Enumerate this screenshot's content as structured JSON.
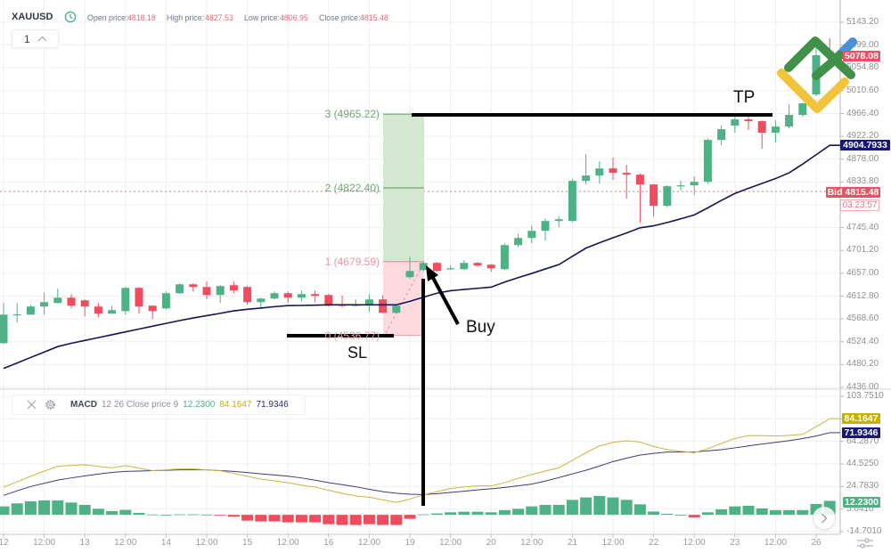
{
  "header": {
    "symbol": "XAUUSD",
    "clock_icon": "clock-icon",
    "open_label": "Open price:",
    "open_value": "4818.18",
    "high_label": "High price:",
    "high_value": "4827.53",
    "low_label": "Low price:",
    "low_value": "4806.95",
    "close_label": "Close price:",
    "close_value": "4815.48"
  },
  "multiplier": {
    "value": "1",
    "icon": "chevron-up-icon"
  },
  "macd_legend": {
    "close_icon": "close-icon",
    "settings_icon": "gear-icon",
    "name": "MACD",
    "params": "12 26 Close price 9",
    "hist_value": "12.2300",
    "macd_value": "84.1647",
    "signal_value": "71.9346"
  },
  "price_tags": {
    "last": "5078.08",
    "ma": "4904.7933",
    "bid": "Bid 4815.48",
    "countdown": "03:23:57"
  },
  "macd_tags": {
    "macd": "84.1647",
    "signal": "71.9346",
    "hist": "12.2300"
  },
  "annotations": {
    "tp_label": "TP",
    "sl_label": "SL",
    "buy_label": "Buy"
  },
  "controls": {
    "scroll_icon": "chevron-right-icon",
    "settings_icon": "sliders-icon"
  },
  "colors": {
    "up": "#4fb286",
    "down": "#ef4d5f",
    "ma": "#15154f",
    "macd": "#c9b540",
    "signal": "#3b3b7d",
    "bid_line": "#e4707f",
    "tp_zone": "#cfe6cc",
    "sl_zone": "#fcd6dc"
  },
  "chart_data": {
    "type": "candlestick",
    "title": "XAUUSD",
    "x_ticks": [
      {
        "label": "12",
        "index": 0
      },
      {
        "label": "12:00",
        "index": 3
      },
      {
        "label": "13",
        "index": 6
      },
      {
        "label": "12:00",
        "index": 9
      },
      {
        "label": "14",
        "index": 12
      },
      {
        "label": "12:00",
        "index": 15
      },
      {
        "label": "15",
        "index": 18
      },
      {
        "label": "12:00",
        "index": 21
      },
      {
        "label": "16",
        "index": 24
      },
      {
        "label": "12:00",
        "index": 27
      },
      {
        "label": "19",
        "index": 30
      },
      {
        "label": "12:00",
        "index": 33
      },
      {
        "label": "20",
        "index": 36
      },
      {
        "label": "12:00",
        "index": 39
      },
      {
        "label": "21",
        "index": 42
      },
      {
        "label": "12:00",
        "index": 45
      },
      {
        "label": "22",
        "index": 48
      },
      {
        "label": "12:00",
        "index": 51
      },
      {
        "label": "23",
        "index": 54
      },
      {
        "label": "12:00",
        "index": 57
      },
      {
        "label": "26",
        "index": 60
      }
    ],
    "price_axis": {
      "ticks": [
        "5143.20",
        "5099.00",
        "5054.80",
        "5010.60",
        "4966.40",
        "4922.20",
        "4878.00",
        "4833.80",
        "4745.40",
        "4701.20",
        "4657.00",
        "4612.80",
        "4568.60",
        "4524.40",
        "4480.20",
        "4436.00"
      ],
      "range": [
        4436.0,
        5143.2
      ],
      "grid": true
    },
    "candles_ohlc": [
      [
        4521.7,
        4599.4,
        4520.0,
        4576.9
      ],
      [
        4576.0,
        4599.4,
        4561.4,
        4577.5
      ],
      [
        4576.9,
        4595.9,
        4576.9,
        4592.5
      ],
      [
        4592.5,
        4618.4,
        4576.9,
        4601.1
      ],
      [
        4599.4,
        4627.0,
        4599.4,
        4609.7
      ],
      [
        4609.7,
        4616.7,
        4589.0,
        4594.2
      ],
      [
        4604.6,
        4606.3,
        4573.5,
        4592.5
      ],
      [
        4592.5,
        4599.4,
        4571.8,
        4578.7
      ],
      [
        4578.7,
        4594.2,
        4578.7,
        4585.6
      ],
      [
        4583.8,
        4630.5,
        4576.9,
        4628.7
      ],
      [
        4628.7,
        4630.5,
        4578.7,
        4592.5
      ],
      [
        4594.2,
        4594.2,
        4568.3,
        4583.8
      ],
      [
        4589.0,
        4621.8,
        4587.3,
        4618.4
      ],
      [
        4618.4,
        4637.4,
        4616.7,
        4635.6
      ],
      [
        4635.6,
        4637.4,
        4621.8,
        4630.5
      ],
      [
        4630.5,
        4640.8,
        4606.3,
        4614.9
      ],
      [
        4614.9,
        4633.9,
        4599.4,
        4632.2
      ],
      [
        4633.9,
        4640.8,
        4618.4,
        4623.6
      ],
      [
        4630.5,
        4632.2,
        4595.9,
        4601.1
      ],
      [
        4601.1,
        4609.7,
        4590.8,
        4608.0
      ],
      [
        4608.0,
        4621.8,
        4606.3,
        4618.4
      ],
      [
        4618.4,
        4621.8,
        4599.4,
        4609.7
      ],
      [
        4609.7,
        4623.6,
        4602.8,
        4616.7
      ],
      [
        4616.7,
        4623.6,
        4601.1,
        4613.2
      ],
      [
        4614.9,
        4616.7,
        4592.5,
        4594.2
      ],
      [
        4595.9,
        4613.2,
        4590.8,
        4594.2
      ],
      [
        4595.0,
        4606.3,
        4592.5,
        4595.9
      ],
      [
        4595.9,
        4616.7,
        4582.1,
        4606.3
      ],
      [
        4606.3,
        4614.9,
        4580.4,
        4580.4
      ],
      [
        4580.4,
        4595.9,
        4578.7,
        4594.2
      ],
      [
        4649.5,
        4689.2,
        4646.0,
        4661.5
      ],
      [
        4663.3,
        4680.0,
        4661.5,
        4677.1
      ],
      [
        4677.1,
        4678.8,
        4659.8,
        4661.5
      ],
      [
        4665.0,
        4671.9,
        4663.3,
        4666.7
      ],
      [
        4665.0,
        4682.3,
        4663.3,
        4677.1
      ],
      [
        4677.1,
        4678.8,
        4670.0,
        4671.9
      ],
      [
        4673.6,
        4675.0,
        4659.8,
        4666.7
      ],
      [
        4665.0,
        4715.0,
        4663.3,
        4711.6
      ],
      [
        4711.6,
        4734.1,
        4708.0,
        4725.4
      ],
      [
        4725.4,
        4749.6,
        4715.1,
        4739.2
      ],
      [
        4739.2,
        4763.4,
        4720.2,
        4758.2
      ],
      [
        4758.2,
        4766.9,
        4746.1,
        4761.7
      ],
      [
        4758.2,
        4840.0,
        4756.0,
        4835.9
      ],
      [
        4835.9,
        4887.7,
        4829.0,
        4846.3
      ],
      [
        4846.3,
        4873.9,
        4830.7,
        4860.1
      ],
      [
        4860.1,
        4880.8,
        4837.6,
        4851.5
      ],
      [
        4851.5,
        4867.0,
        4801.4,
        4848.0
      ],
      [
        4848.0,
        4850.0,
        4754.8,
        4829.0
      ],
      [
        4829.0,
        4830.0,
        4766.9,
        4787.6
      ],
      [
        4787.6,
        4827.3,
        4785.0,
        4825.6
      ],
      [
        4825.6,
        4835.9,
        4816.9,
        4827.3
      ],
      [
        4827.3,
        4844.6,
        4808.3,
        4834.2
      ],
      [
        4834.2,
        4918.0,
        4830.0,
        4915.3
      ],
      [
        4915.3,
        4943.0,
        4905.0,
        4936.1
      ],
      [
        4943.0,
        4960.2,
        4929.2,
        4955.0
      ],
      [
        4955.0,
        4962.0,
        4934.3,
        4951.6
      ],
      [
        4951.6,
        4953.0,
        4898.1,
        4929.2
      ],
      [
        4929.2,
        4953.3,
        4910.2,
        4941.2
      ],
      [
        4941.2,
        4984.4,
        4938.0,
        4963.7
      ],
      [
        4963.7,
        4988.0,
        4960.0,
        4986.1
      ],
      [
        5003.4,
        5108.7,
        5000.0,
        5079.4
      ],
      [
        5086.3,
        5112.2,
        5065.5,
        5078.08
      ]
    ],
    "moving_average": [
      4472.7,
      4483.2,
      4493.9,
      4504.4,
      4515.0,
      4521.4,
      4526.9,
      4532.4,
      4537.9,
      4543.5,
      4549.0,
      4554.5,
      4560.0,
      4565.4,
      4570.4,
      4575.0,
      4579.4,
      4584.2,
      4587.3,
      4589.7,
      4592.3,
      4594.4,
      4594.7,
      4595.2,
      4595.8,
      4595.9,
      4595.9,
      4595.9,
      4595.9,
      4595.9,
      4602.7,
      4610.6,
      4618.4,
      4623.2,
      4625.6,
      4627.9,
      4630.1,
      4640.0,
      4648.6,
      4656.7,
      4665.3,
      4673.8,
      4689.8,
      4705.7,
      4716.1,
      4725.8,
      4735.1,
      4745.1,
      4748.9,
      4755.3,
      4762.5,
      4770.0,
      4783.8,
      4798.1,
      4811.6,
      4821.6,
      4831.1,
      4840.4,
      4851.6,
      4868.4,
      4886.6,
      4904.79
    ],
    "last_price": 5078.08,
    "bid": 4815.48,
    "risk_reward": {
      "levels": [
        {
          "label": "3 (4965.22)",
          "price": 4965.22,
          "color": "#6fa86f"
        },
        {
          "label": "2 (4822.40)",
          "price": 4822.4,
          "color": "#6fa86f"
        },
        {
          "label": "1 (4679.59)",
          "price": 4679.59,
          "color": "#e995a3"
        },
        {
          "label": "0 (4536.77)",
          "price": 4536.77,
          "color": "#e9a6b0"
        }
      ]
    },
    "macd": {
      "params": "12 26 Close price 9",
      "axis_ticks": [
        "103.7510",
        "64.2870",
        "44.5250",
        "24.7830",
        "5.0410",
        "-14.7010"
      ],
      "range": [
        -14.701,
        103.751
      ],
      "macd_line": [
        24.2,
        28.9,
        33.7,
        38.3,
        42.5,
        43.3,
        43.8,
        42.4,
        41.1,
        43.1,
        40.8,
        38.7,
        39.4,
        40.1,
        40.1,
        39.4,
        38.6,
        36.2,
        33.8,
        31.2,
        29.7,
        28.1,
        25.9,
        24.4,
        21.4,
        18.8,
        16.6,
        15.4,
        13.2,
        10.8,
        13.8,
        17.5,
        20.3,
        23.1,
        24.5,
        25.3,
        25.3,
        28.1,
        31.9,
        35.3,
        38.4,
        41.1,
        47.7,
        54.4,
        60.3,
        63.4,
        64.8,
        63.7,
        59.8,
        57.1,
        55.6,
        54.4,
        57.9,
        62.4,
        66.8,
        69.3,
        69.4,
        69.0,
        69.6,
        70.4,
        77.1,
        84.1647
      ],
      "signal_line": [
        17.0,
        21.0,
        24.8,
        27.6,
        30.4,
        32.3,
        34.1,
        35.7,
        37.1,
        38.0,
        38.3,
        38.7,
        39.0,
        39.4,
        39.4,
        39.4,
        38.7,
        38.0,
        37.0,
        35.9,
        34.9,
        33.8,
        32.3,
        30.3,
        28.2,
        26.4,
        24.6,
        22.3,
        20.3,
        18.9,
        18.0,
        17.7,
        18.5,
        19.6,
        20.7,
        21.8,
        22.8,
        24.0,
        25.4,
        26.9,
        29.5,
        32.6,
        35.8,
        39.0,
        42.7,
        46.6,
        49.6,
        52.3,
        53.8,
        54.9,
        54.9,
        54.9,
        56.0,
        57.0,
        58.6,
        60.3,
        62.0,
        63.4,
        64.9,
        66.7,
        69.0,
        71.9346
      ],
      "histogram": [
        7.4,
        10.0,
        11.8,
        12.6,
        12.6,
        10.8,
        8.7,
        5.3,
        3.3,
        4.3,
        1.7,
        0.3,
        0.1,
        0.4,
        0.4,
        0.2,
        -0.2,
        -1.7,
        -5.1,
        -5.8,
        -5.8,
        -6.6,
        -6.6,
        -6.6,
        -8.2,
        -8.9,
        -8.9,
        -8.2,
        -8.9,
        -8.9,
        -3.5,
        0.4,
        1.2,
        2.2,
        2.7,
        2.7,
        2.2,
        4.1,
        5.3,
        7.4,
        8.7,
        8.7,
        13.1,
        15.2,
        16.5,
        15.2,
        13.1,
        9.2,
        2.9,
        0.9,
        0,
        -2.2,
        2.2,
        4.8,
        7.4,
        7.9,
        5.6,
        4.1,
        4.1,
        4.1,
        9.5,
        12.23
      ]
    }
  }
}
